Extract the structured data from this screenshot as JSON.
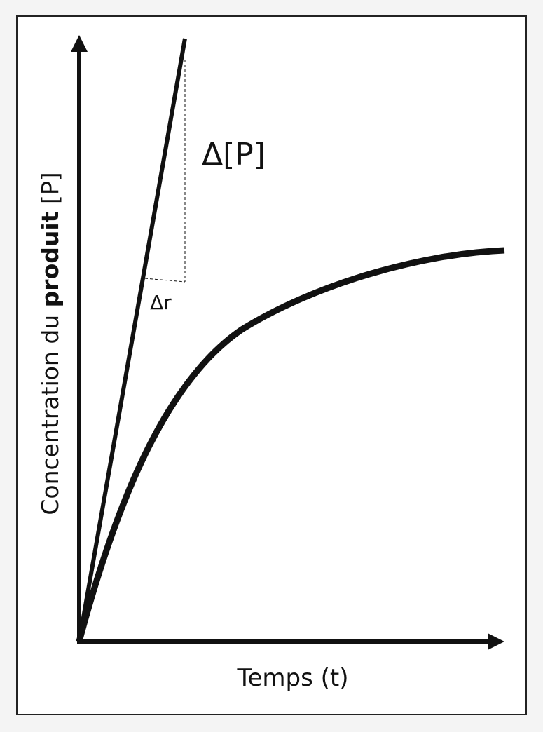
{
  "axes": {
    "y_label": {
      "part1": "Concentration du ",
      "part2": "produit",
      "part3": " [P]"
    },
    "x_label": "Temps (t)"
  },
  "annotations": {
    "delta_p": "Δ[P]",
    "delta_r": "Δr"
  }
}
